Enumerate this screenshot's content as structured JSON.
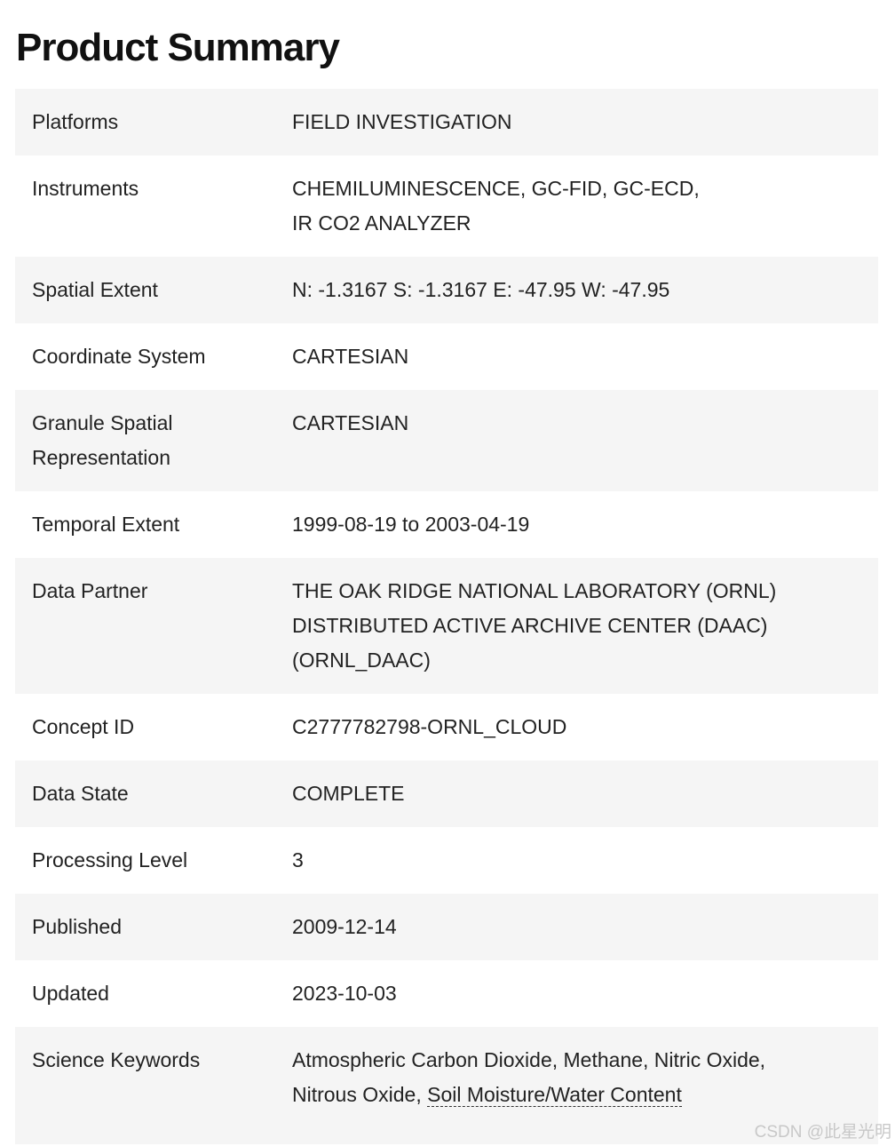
{
  "title": "Product Summary",
  "rows": [
    {
      "label": [
        "Platforms"
      ],
      "value": [
        "FIELD INVESTIGATION"
      ]
    },
    {
      "label": [
        "Instruments"
      ],
      "value": [
        "CHEMILUMINESCENCE, GC-FID, GC-ECD,",
        "IR CO2 ANALYZER"
      ]
    },
    {
      "label": [
        "Spatial Extent"
      ],
      "value": [
        "N: -1.3167 S: -1.3167 E: -47.95 W: -47.95"
      ]
    },
    {
      "label": [
        "Coordinate System"
      ],
      "value": [
        "CARTESIAN"
      ]
    },
    {
      "label": [
        "Granule Spatial",
        "Representation"
      ],
      "value": [
        "CARTESIAN"
      ]
    },
    {
      "label": [
        "Temporal Extent"
      ],
      "value": [
        "1999-08-19 to 2003-04-19"
      ]
    },
    {
      "label": [
        "Data Partner"
      ],
      "value": [
        "THE OAK RIDGE NATIONAL LABORATORY (ORNL)",
        "DISTRIBUTED ACTIVE ARCHIVE CENTER (DAAC)",
        "(ORNL_DAAC)"
      ]
    },
    {
      "label": [
        "Concept ID"
      ],
      "value": [
        "C2777782798-ORNL_CLOUD"
      ]
    },
    {
      "label": [
        "Data State"
      ],
      "value": [
        "COMPLETE"
      ]
    },
    {
      "label": [
        "Processing Level"
      ],
      "value": [
        "3"
      ]
    },
    {
      "label": [
        "Published"
      ],
      "value": [
        "2009-12-14"
      ]
    },
    {
      "label": [
        "Updated"
      ],
      "value": [
        "2023-10-03"
      ]
    }
  ],
  "science_keywords": {
    "label": "Science Keywords",
    "line1": "Atmospheric Carbon Dioxide, Methane, Nitric Oxide,",
    "line2_prefix": "Nitrous Oxide, ",
    "link": "Soil Moisture/Water Content"
  },
  "watermark": "CSDN @此星光明"
}
